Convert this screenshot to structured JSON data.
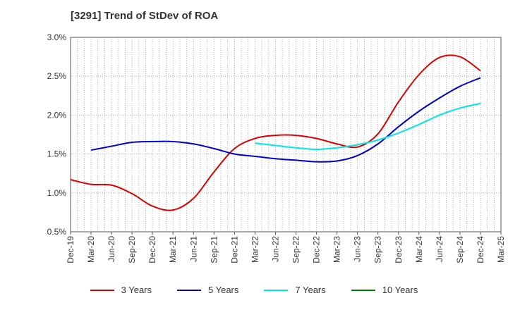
{
  "chart_data": {
    "type": "line",
    "title": "[3291]  Trend of StDev of ROA",
    "xlabel": "",
    "ylabel": "",
    "x": [
      "Dec-19",
      "Mar-20",
      "Jun-20",
      "Sep-20",
      "Dec-20",
      "Mar-21",
      "Jun-21",
      "Sep-21",
      "Dec-21",
      "Mar-22",
      "Jun-22",
      "Sep-22",
      "Dec-22",
      "Mar-23",
      "Jun-23",
      "Sep-23",
      "Dec-23",
      "Mar-24",
      "Jun-24",
      "Sep-24",
      "Dec-24",
      "Mar-25"
    ],
    "ylim": [
      0.5,
      3.0
    ],
    "yticks": [
      "0.5%",
      "1.0%",
      "1.5%",
      "2.0%",
      "2.5%",
      "3.0%"
    ],
    "grid": true,
    "legend_position": "bottom",
    "series": [
      {
        "name": "3 Years",
        "color": "#dd0000",
        "values": [
          1.17,
          1.11,
          1.1,
          0.99,
          0.83,
          0.78,
          0.93,
          1.27,
          1.57,
          1.7,
          1.74,
          1.74,
          1.7,
          1.63,
          1.59,
          1.76,
          2.17,
          2.52,
          2.74,
          2.75,
          2.57,
          null
        ]
      },
      {
        "name": "5 Years",
        "color": "#0000cc",
        "values": [
          null,
          1.55,
          1.6,
          1.65,
          1.66,
          1.66,
          1.63,
          1.57,
          1.5,
          1.47,
          1.44,
          1.42,
          1.4,
          1.41,
          1.48,
          1.63,
          1.85,
          2.05,
          2.22,
          2.37,
          2.48,
          null
        ]
      },
      {
        "name": "7 Years",
        "color": "#00e5ee",
        "values": [
          null,
          null,
          null,
          null,
          null,
          null,
          null,
          null,
          null,
          1.64,
          1.61,
          1.58,
          1.56,
          1.58,
          1.62,
          1.68,
          1.77,
          1.88,
          2.0,
          2.09,
          2.15,
          null
        ]
      },
      {
        "name": "10 Years",
        "color": "#008000",
        "values": [
          null,
          null,
          null,
          null,
          null,
          null,
          null,
          null,
          null,
          null,
          null,
          null,
          null,
          null,
          null,
          null,
          null,
          null,
          null,
          null,
          null,
          null
        ]
      }
    ]
  }
}
